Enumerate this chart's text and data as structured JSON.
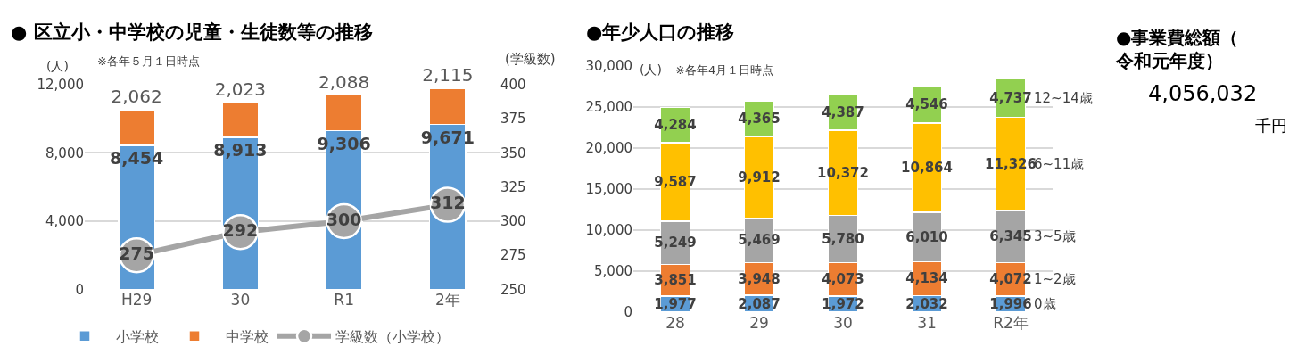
{
  "chart_data": [
    {
      "type": "bar",
      "title": "● 区立小・中学校の児童・生徒数等の推移",
      "ylabel": "(人)",
      "y2label": "(学級数)",
      "annotations": [
        "※各年５月１日時点"
      ],
      "categories": [
        "H29",
        "30",
        "R1",
        "2年"
      ],
      "stacked": true,
      "series": [
        {
          "name": "小学校",
          "color": "#5b9bd5",
          "values": [
            8454,
            8913,
            9306,
            9671
          ],
          "value_labels": [
            "8,454",
            "8,913",
            "9,306",
            "9,671"
          ]
        },
        {
          "name": "中学校",
          "color": "#ed7d31",
          "values": [
            2062,
            2023,
            2088,
            2115
          ],
          "value_labels": [
            "2,062",
            "2,023",
            "2,088",
            "2,115"
          ]
        },
        {
          "name": "学級数（小学校）",
          "type": "line",
          "axis": "y2",
          "color": "#a5a5a5",
          "values": [
            275,
            292,
            300,
            312
          ],
          "value_labels": [
            "275",
            "292",
            "300",
            "312"
          ]
        }
      ],
      "ylim": [
        0,
        12000
      ],
      "yticks": [
        0,
        {
          "value": 4000,
          "label": "4,000"
        },
        {
          "value": 8000,
          "label": "8,000"
        },
        {
          "value": 12000,
          "label": "12,000"
        }
      ],
      "y2lim": [
        250,
        400
      ],
      "y2ticks": [
        250,
        275,
        300,
        325,
        350,
        375,
        400
      ],
      "grid": "y",
      "legend": "bottom",
      "marker": "circle",
      "line_style": "solid"
    },
    {
      "type": "bar",
      "title": "●年少人口の推移",
      "ylabel": "(人)",
      "annotations": [
        "※各年4月１日時点"
      ],
      "categories": [
        "28",
        "29",
        "30",
        "31",
        "R2年"
      ],
      "stacked": true,
      "series": [
        {
          "name": "0歳",
          "color": "#5b9bd5",
          "values": [
            1977,
            2087,
            1972,
            2032,
            1996
          ],
          "value_labels": [
            "1,977",
            "2,087",
            "1,972",
            "2,032",
            "1,996"
          ]
        },
        {
          "name": "1~2歳",
          "color": "#ed7d31",
          "values": [
            3851,
            3948,
            4073,
            4134,
            4072
          ],
          "value_labels": [
            "3,851",
            "3,948",
            "4,073",
            "4,134",
            "4,072"
          ]
        },
        {
          "name": "3~5歳",
          "color": "#a5a5a5",
          "values": [
            5249,
            5469,
            5780,
            6010,
            6345
          ],
          "value_labels": [
            "5,249",
            "5,469",
            "5,780",
            "6,010",
            "6,345"
          ]
        },
        {
          "name": "6~11歳",
          "color": "#ffc000",
          "values": [
            9587,
            9912,
            10372,
            10864,
            11326
          ],
          "value_labels": [
            "9,587",
            "9,912",
            "10,372",
            "10,864",
            "11,326"
          ]
        },
        {
          "name": "12~14歳",
          "color": "#92d050",
          "values": [
            4284,
            4365,
            4387,
            4546,
            4737
          ],
          "value_labels": [
            "4,284",
            "4,365",
            "4,387",
            "4,546",
            "4,737"
          ]
        }
      ],
      "ylim": [
        0,
        30000
      ],
      "yticks": [
        0,
        {
          "value": 5000,
          "label": "5,000"
        },
        {
          "value": 10000,
          "label": "10,000"
        },
        {
          "value": 15000,
          "label": "15,000"
        },
        {
          "value": 20000,
          "label": "20,000"
        },
        {
          "value": 25000,
          "label": "25,000"
        },
        {
          "value": 30000,
          "label": "30,000"
        }
      ],
      "grid": "y"
    },
    {
      "type": "other",
      "title": "●事業費総額（令和元年度）",
      "annotations": [
        "4,056,032",
        "千円"
      ]
    }
  ]
}
